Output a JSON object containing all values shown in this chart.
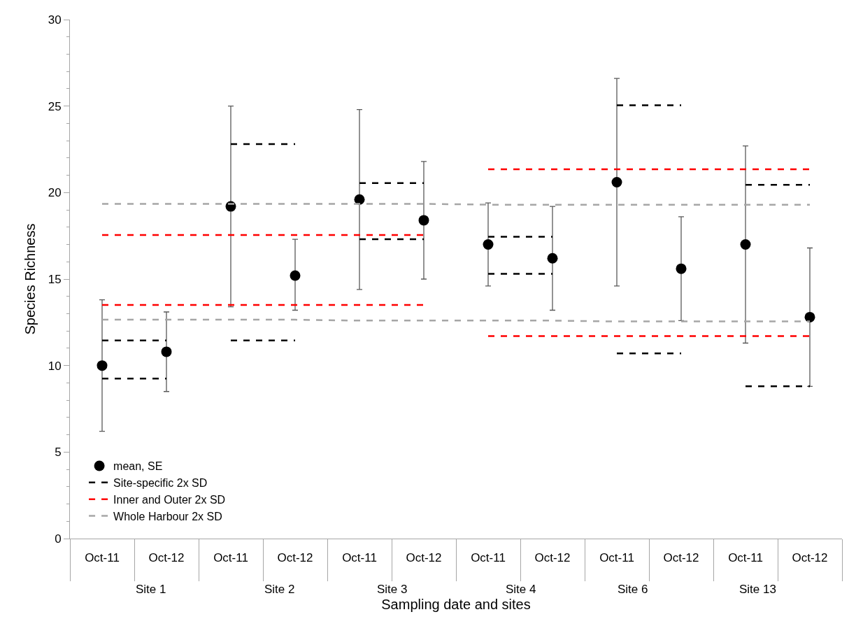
{
  "chart_data": {
    "type": "scatter",
    "ylabel": "Species Richness",
    "xlabel": "Sampling date and sites",
    "categories": [
      "Oct-11",
      "Oct-12",
      "Oct-11",
      "Oct-12",
      "Oct-11",
      "Oct-12",
      "Oct-11",
      "Oct-12",
      "Oct-11",
      "Oct-12",
      "Oct-11",
      "Oct-12"
    ],
    "ylim": [
      0,
      30
    ],
    "yticks": [
      0,
      5,
      10,
      15,
      20,
      25,
      30
    ],
    "grid": false,
    "legend": "bottom left",
    "annotations": [
      "Site 1",
      "Site 2",
      "Site 3",
      "Site 4",
      "Site 6",
      "Site 13"
    ],
    "series": [
      {
        "name": "mean, SE",
        "marker": "circle",
        "color": "#000000",
        "values": [
          10.0,
          10.8,
          19.2,
          15.2,
          19.6,
          18.4,
          17.0,
          16.2,
          20.6,
          15.6,
          17.0,
          12.8
        ],
        "errors": [
          [
            6.2,
            13.8
          ],
          [
            8.5,
            13.1
          ],
          [
            13.4,
            25.0
          ],
          [
            13.2,
            17.3
          ],
          [
            14.4,
            24.8
          ],
          [
            15.0,
            21.8
          ],
          [
            14.6,
            19.4
          ],
          [
            13.2,
            19.2
          ],
          [
            14.6,
            26.6
          ],
          [
            12.6,
            18.6
          ],
          [
            11.3,
            22.7
          ],
          [
            8.8,
            16.8
          ]
        ]
      },
      {
        "name": "Site-specific 2x SD",
        "type": "line",
        "marker": "none",
        "line_style": "dashed",
        "color": "#000000",
        "values": [
          11.45,
          11.45,
          null,
          null,
          null,
          null,
          null,
          null,
          null,
          null,
          null,
          null
        ]
      },
      {
        "type": "line",
        "marker": "none",
        "line_style": "dashed",
        "color": "#000000",
        "values": [
          9.25,
          9.25,
          null,
          null,
          null,
          null,
          null,
          null,
          null,
          null,
          null,
          null
        ]
      },
      {
        "type": "line",
        "marker": "none",
        "line_style": "dashed",
        "color": "#000000",
        "values": [
          null,
          null,
          22.8,
          22.8,
          null,
          null,
          null,
          null,
          null,
          null,
          null,
          null
        ]
      },
      {
        "type": "line",
        "marker": "none",
        "line_style": "dashed",
        "color": "#000000",
        "values": [
          null,
          null,
          11.45,
          11.45,
          null,
          null,
          null,
          null,
          null,
          null,
          null,
          null
        ]
      },
      {
        "type": "line",
        "marker": "none",
        "line_style": "dashed",
        "color": "#000000",
        "values": [
          null,
          null,
          null,
          null,
          20.55,
          20.55,
          null,
          null,
          null,
          null,
          null,
          null
        ]
      },
      {
        "type": "line",
        "marker": "none",
        "line_style": "dashed",
        "color": "#000000",
        "values": [
          null,
          null,
          null,
          null,
          17.3,
          17.3,
          null,
          null,
          null,
          null,
          null,
          null
        ]
      },
      {
        "type": "line",
        "marker": "none",
        "line_style": "dashed",
        "color": "#000000",
        "values": [
          null,
          null,
          null,
          null,
          null,
          null,
          17.45,
          17.45,
          null,
          null,
          null,
          null
        ]
      },
      {
        "type": "line",
        "marker": "none",
        "line_style": "dashed",
        "color": "#000000",
        "values": [
          null,
          null,
          null,
          null,
          null,
          null,
          15.3,
          15.3,
          null,
          null,
          null,
          null
        ]
      },
      {
        "type": "line",
        "marker": "none",
        "line_style": "dashed",
        "color": "#000000",
        "values": [
          null,
          null,
          null,
          null,
          null,
          null,
          null,
          null,
          25.05,
          25.05,
          null,
          null
        ]
      },
      {
        "type": "line",
        "marker": "none",
        "line_style": "dashed",
        "color": "#000000",
        "values": [
          null,
          null,
          null,
          null,
          null,
          null,
          null,
          null,
          10.7,
          10.7,
          null,
          null
        ]
      },
      {
        "type": "line",
        "marker": "none",
        "line_style": "dashed",
        "color": "#000000",
        "values": [
          null,
          null,
          null,
          null,
          null,
          null,
          null,
          null,
          null,
          null,
          20.45,
          20.45
        ]
      },
      {
        "type": "line",
        "marker": "none",
        "line_style": "dashed",
        "color": "#000000",
        "values": [
          null,
          null,
          null,
          null,
          null,
          null,
          null,
          null,
          null,
          null,
          8.8,
          8.8
        ]
      },
      {
        "name": "Inner and Outer 2x SD",
        "type": "line",
        "marker": "none",
        "line_style": "dashed",
        "color": "#ff0000",
        "values": [
          17.55,
          17.55,
          17.55,
          17.55,
          17.55,
          17.55,
          null,
          null,
          null,
          null,
          null,
          null
        ]
      },
      {
        "type": "line",
        "marker": "none",
        "line_style": "dashed",
        "color": "#ff0000",
        "values": [
          13.5,
          13.5,
          13.5,
          13.5,
          13.5,
          13.5,
          null,
          null,
          null,
          null,
          null,
          null
        ]
      },
      {
        "type": "line",
        "marker": "none",
        "line_style": "dashed",
        "color": "#ff0000",
        "values": [
          null,
          null,
          null,
          null,
          null,
          null,
          21.35,
          21.35,
          21.35,
          21.35,
          21.35,
          21.35
        ]
      },
      {
        "type": "line",
        "marker": "none",
        "line_style": "dashed",
        "color": "#ff0000",
        "values": [
          null,
          null,
          null,
          null,
          null,
          null,
          11.7,
          11.7,
          11.7,
          11.7,
          11.7,
          11.7
        ]
      },
      {
        "name": "Whole Harbour 2x SD",
        "type": "line",
        "marker": "none",
        "line_style": "dashed",
        "color": "#a6a6a6",
        "values": [
          19.35,
          19.35,
          19.35,
          19.35,
          19.35,
          19.35,
          19.3,
          19.3,
          19.3,
          19.3,
          19.3,
          19.3
        ]
      },
      {
        "type": "line",
        "marker": "none",
        "line_style": "dashed",
        "color": "#a6a6a6",
        "values": [
          12.65,
          12.65,
          12.65,
          12.65,
          12.6,
          12.6,
          12.6,
          12.6,
          12.55,
          12.55,
          12.55,
          12.55
        ]
      }
    ]
  }
}
